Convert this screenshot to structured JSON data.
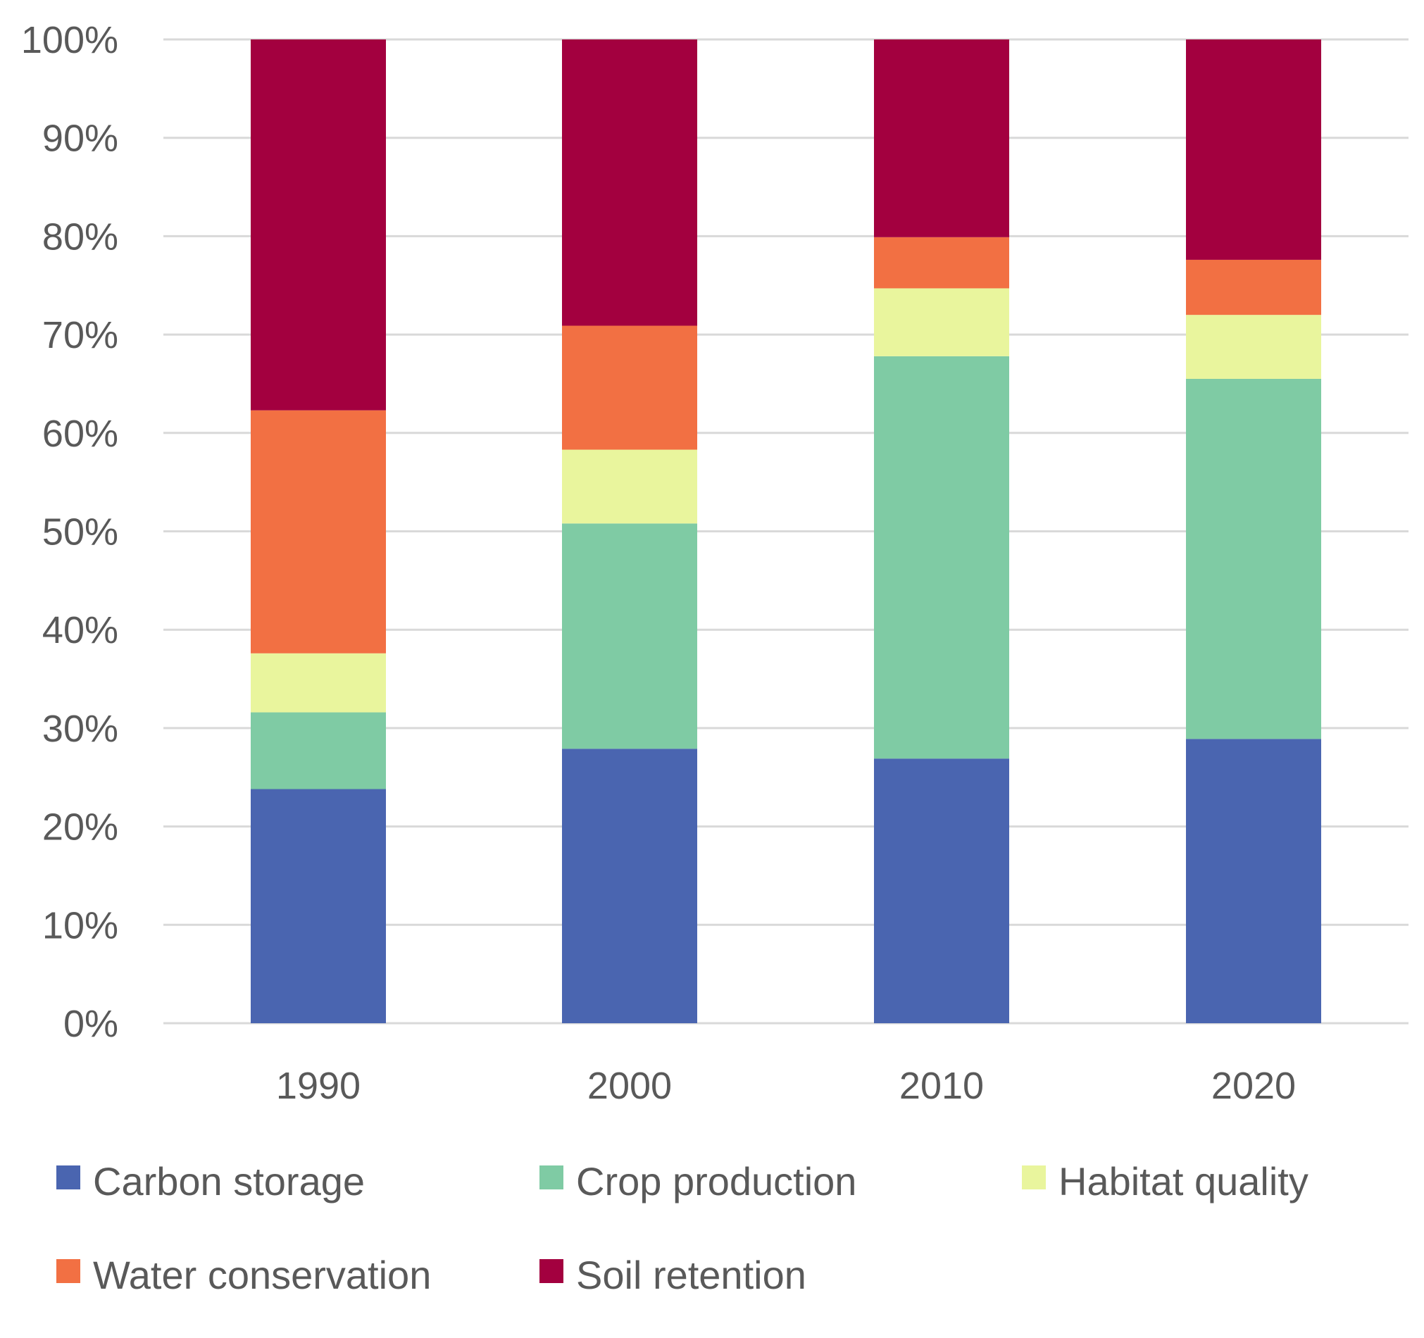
{
  "chart_data": {
    "type": "bar",
    "stacked": true,
    "title": "",
    "xlabel": "",
    "ylabel": "",
    "categories": [
      "1990",
      "2000",
      "2010",
      "2020"
    ],
    "y_ticks": [
      "0%",
      "10%",
      "20%",
      "30%",
      "40%",
      "50%",
      "60%",
      "70%",
      "80%",
      "90%",
      "100%"
    ],
    "ylim": [
      0,
      100
    ],
    "grid": true,
    "legend_position": "bottom",
    "series": [
      {
        "name": "Carbon storage",
        "color": "#4a65b0",
        "values": [
          23.8,
          27.9,
          26.9,
          28.9
        ]
      },
      {
        "name": "Crop production",
        "color": "#7fcba4",
        "values": [
          7.8,
          22.9,
          40.9,
          36.6
        ]
      },
      {
        "name": "Habitat quality",
        "color": "#e9f59d",
        "values": [
          6.0,
          7.5,
          6.9,
          6.5
        ]
      },
      {
        "name": "Water conservation",
        "color": "#f27043",
        "values": [
          24.7,
          12.6,
          5.2,
          5.6
        ]
      },
      {
        "name": "Soil retention",
        "color": "#a3003f",
        "values": [
          37.7,
          29.1,
          20.1,
          22.4
        ]
      }
    ]
  }
}
